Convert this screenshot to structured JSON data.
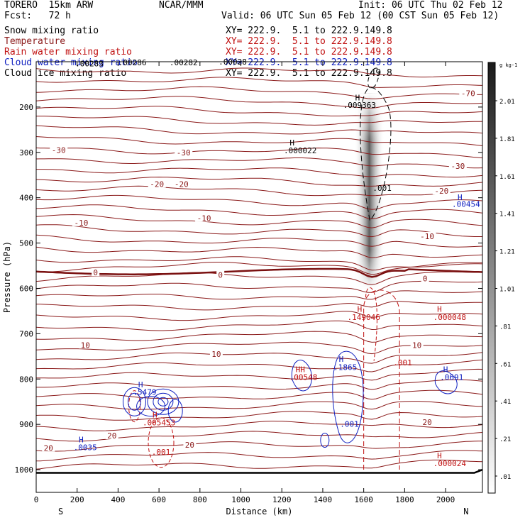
{
  "header": {
    "model": "TORERO  15km ARW",
    "org": "NCAR/MMM",
    "init": "Init: 06 UTC Thu 02 Feb 12",
    "fcst": "Fcst:   72 h",
    "valid": "Valid: 06 UTC Sun 05 Feb 12 (00 CST Sun 05 Feb 12)"
  },
  "fields": [
    {
      "name": "Snow mixing ratio",
      "xy": "XY= 222.9.  5.1 to 222.9.149.8",
      "color": "#000000"
    },
    {
      "name": "Temperature",
      "xy": "XY= 222.9.  5.1 to 222.9.149.8",
      "color": "#8b1a1a"
    },
    {
      "name": "Rain water mixing ratio",
      "xy": "XY= 222.9.  5.1 to 222.9.149.8",
      "color": "#c01010"
    },
    {
      "name": "Cloud water mixing ratio",
      "xy": "XY= 222.9.  5.1 to 222.9.149.8",
      "color": "#1020c0"
    },
    {
      "name": "Cloud ice mixing ratio",
      "xy": "XY= 222.9.  5.1 to 222.9.149.8",
      "color": "#000000"
    }
  ],
  "chart_data": {
    "type": "heatmap",
    "xlabel": "Distance (km)",
    "ylabel": "Pressure (hPa)",
    "x_ticks": [
      0,
      200,
      400,
      600,
      800,
      1000,
      1200,
      1400,
      1600,
      1800,
      2000
    ],
    "y_ticks": [
      200,
      300,
      400,
      500,
      600,
      700,
      800,
      900,
      1000
    ],
    "xlim": [
      0,
      2180
    ],
    "ylim": [
      1050,
      100
    ],
    "end_labels": {
      "left": "S",
      "right": "N"
    },
    "colorbar": {
      "unit": "g kg-1",
      "ticks": [
        "2.01",
        "1.81",
        "1.61",
        "1.41",
        "1.21",
        "1.01",
        ".81",
        ".61",
        ".41",
        ".21",
        ".01"
      ]
    },
    "temperature_isotherms": [
      {
        "label": "-70",
        "x": 2110,
        "p": 170
      },
      {
        "label": "-30",
        "x": 110,
        "p": 295
      },
      {
        "label": "-30",
        "x": 720,
        "p": 300
      },
      {
        "label": "-30",
        "x": 2060,
        "p": 330
      },
      {
        "label": "-20",
        "x": 590,
        "p": 370
      },
      {
        "label": "-20",
        "x": 710,
        "p": 370
      },
      {
        "label": "-20",
        "x": 1980,
        "p": 385
      },
      {
        "label": "-10",
        "x": 220,
        "p": 455
      },
      {
        "label": "-10",
        "x": 820,
        "p": 445
      },
      {
        "label": "-10",
        "x": 1910,
        "p": 485
      },
      {
        "label": "0",
        "x": 290,
        "p": 565
      },
      {
        "label": "0",
        "x": 900,
        "p": 570
      },
      {
        "label": "0",
        "x": 1900,
        "p": 578
      },
      {
        "label": "10",
        "x": 240,
        "p": 725
      },
      {
        "label": "10",
        "x": 880,
        "p": 745
      },
      {
        "label": "10",
        "x": 1860,
        "p": 725
      },
      {
        "label": "20",
        "x": 60,
        "p": 952
      },
      {
        "label": "20",
        "x": 370,
        "p": 925
      },
      {
        "label": "20",
        "x": 750,
        "p": 945
      },
      {
        "label": "20",
        "x": 1910,
        "p": 895
      }
    ],
    "annotations": [
      {
        "text": "H",
        "x": 1570,
        "p": 185,
        "color": "#000000"
      },
      {
        "text": ".009363",
        "x": 1580,
        "p": 202,
        "color": "#000000"
      },
      {
        "text": "H",
        "x": 1250,
        "p": 285,
        "color": "#000000"
      },
      {
        "text": ".000022",
        "x": 1290,
        "p": 302,
        "color": "#000000"
      },
      {
        "text": ".001",
        "x": 1690,
        "p": 385,
        "color": "#000000"
      },
      {
        "text": "H",
        "x": 2070,
        "p": 405,
        "color": "#1020c0"
      },
      {
        "text": ".00454",
        "x": 2100,
        "p": 420,
        "color": "#1020c0"
      },
      {
        "text": "H",
        "x": 1580,
        "p": 652,
        "color": "#c01010"
      },
      {
        "text": ".149046",
        "x": 1600,
        "p": 670,
        "color": "#c01010"
      },
      {
        "text": "H",
        "x": 1970,
        "p": 652,
        "color": "#c01010"
      },
      {
        "text": ".000048",
        "x": 2020,
        "p": 670,
        "color": "#c01010"
      },
      {
        "text": ".001",
        "x": 1790,
        "p": 770,
        "color": "#c01010"
      },
      {
        "text": "H",
        "x": 1490,
        "p": 762,
        "color": "#1020c0"
      },
      {
        "text": ".1865",
        "x": 1510,
        "p": 780,
        "color": "#1020c0"
      },
      {
        "text": "HH",
        "x": 1290,
        "p": 785,
        "color": "#c01010"
      },
      {
        "text": ".00548",
        "x": 1305,
        "p": 802,
        "color": "#c01010"
      },
      {
        "text": "H",
        "x": 2000,
        "p": 785,
        "color": "#1020c0"
      },
      {
        "text": ".0691",
        "x": 2030,
        "p": 802,
        "color": "#1020c0"
      },
      {
        "text": "H",
        "x": 510,
        "p": 818,
        "color": "#1020c0"
      },
      {
        "text": ".5479",
        "x": 530,
        "p": 835,
        "color": "#1020c0"
      },
      {
        "text": "H",
        "x": 580,
        "p": 885,
        "color": "#c01010"
      },
      {
        "text": ".005453",
        "x": 600,
        "p": 902,
        "color": "#c01010"
      },
      {
        "text": ".001",
        "x": 1530,
        "p": 905,
        "color": "#1020c0"
      },
      {
        "text": ".001",
        "x": 610,
        "p": 967,
        "color": "#c01010"
      },
      {
        "text": "H",
        "x": 220,
        "p": 940,
        "color": "#1020c0"
      },
      {
        "text": ".0035",
        "x": 240,
        "p": 957,
        "color": "#1020c0"
      },
      {
        "text": "H",
        "x": 1970,
        "p": 975,
        "color": "#c01010"
      },
      {
        "text": ".000024",
        "x": 2020,
        "p": 992,
        "color": "#c01010"
      },
      {
        "text": ".00283",
        "x": 260,
        "p": 110,
        "color": "#000000"
      },
      {
        "text": ".00286",
        "x": 470,
        "p": 108,
        "color": "#000000"
      },
      {
        "text": ".00282",
        "x": 720,
        "p": 108,
        "color": "#000000"
      },
      {
        "text": ".00028",
        "x": 960,
        "p": 106,
        "color": "#000000"
      }
    ]
  }
}
